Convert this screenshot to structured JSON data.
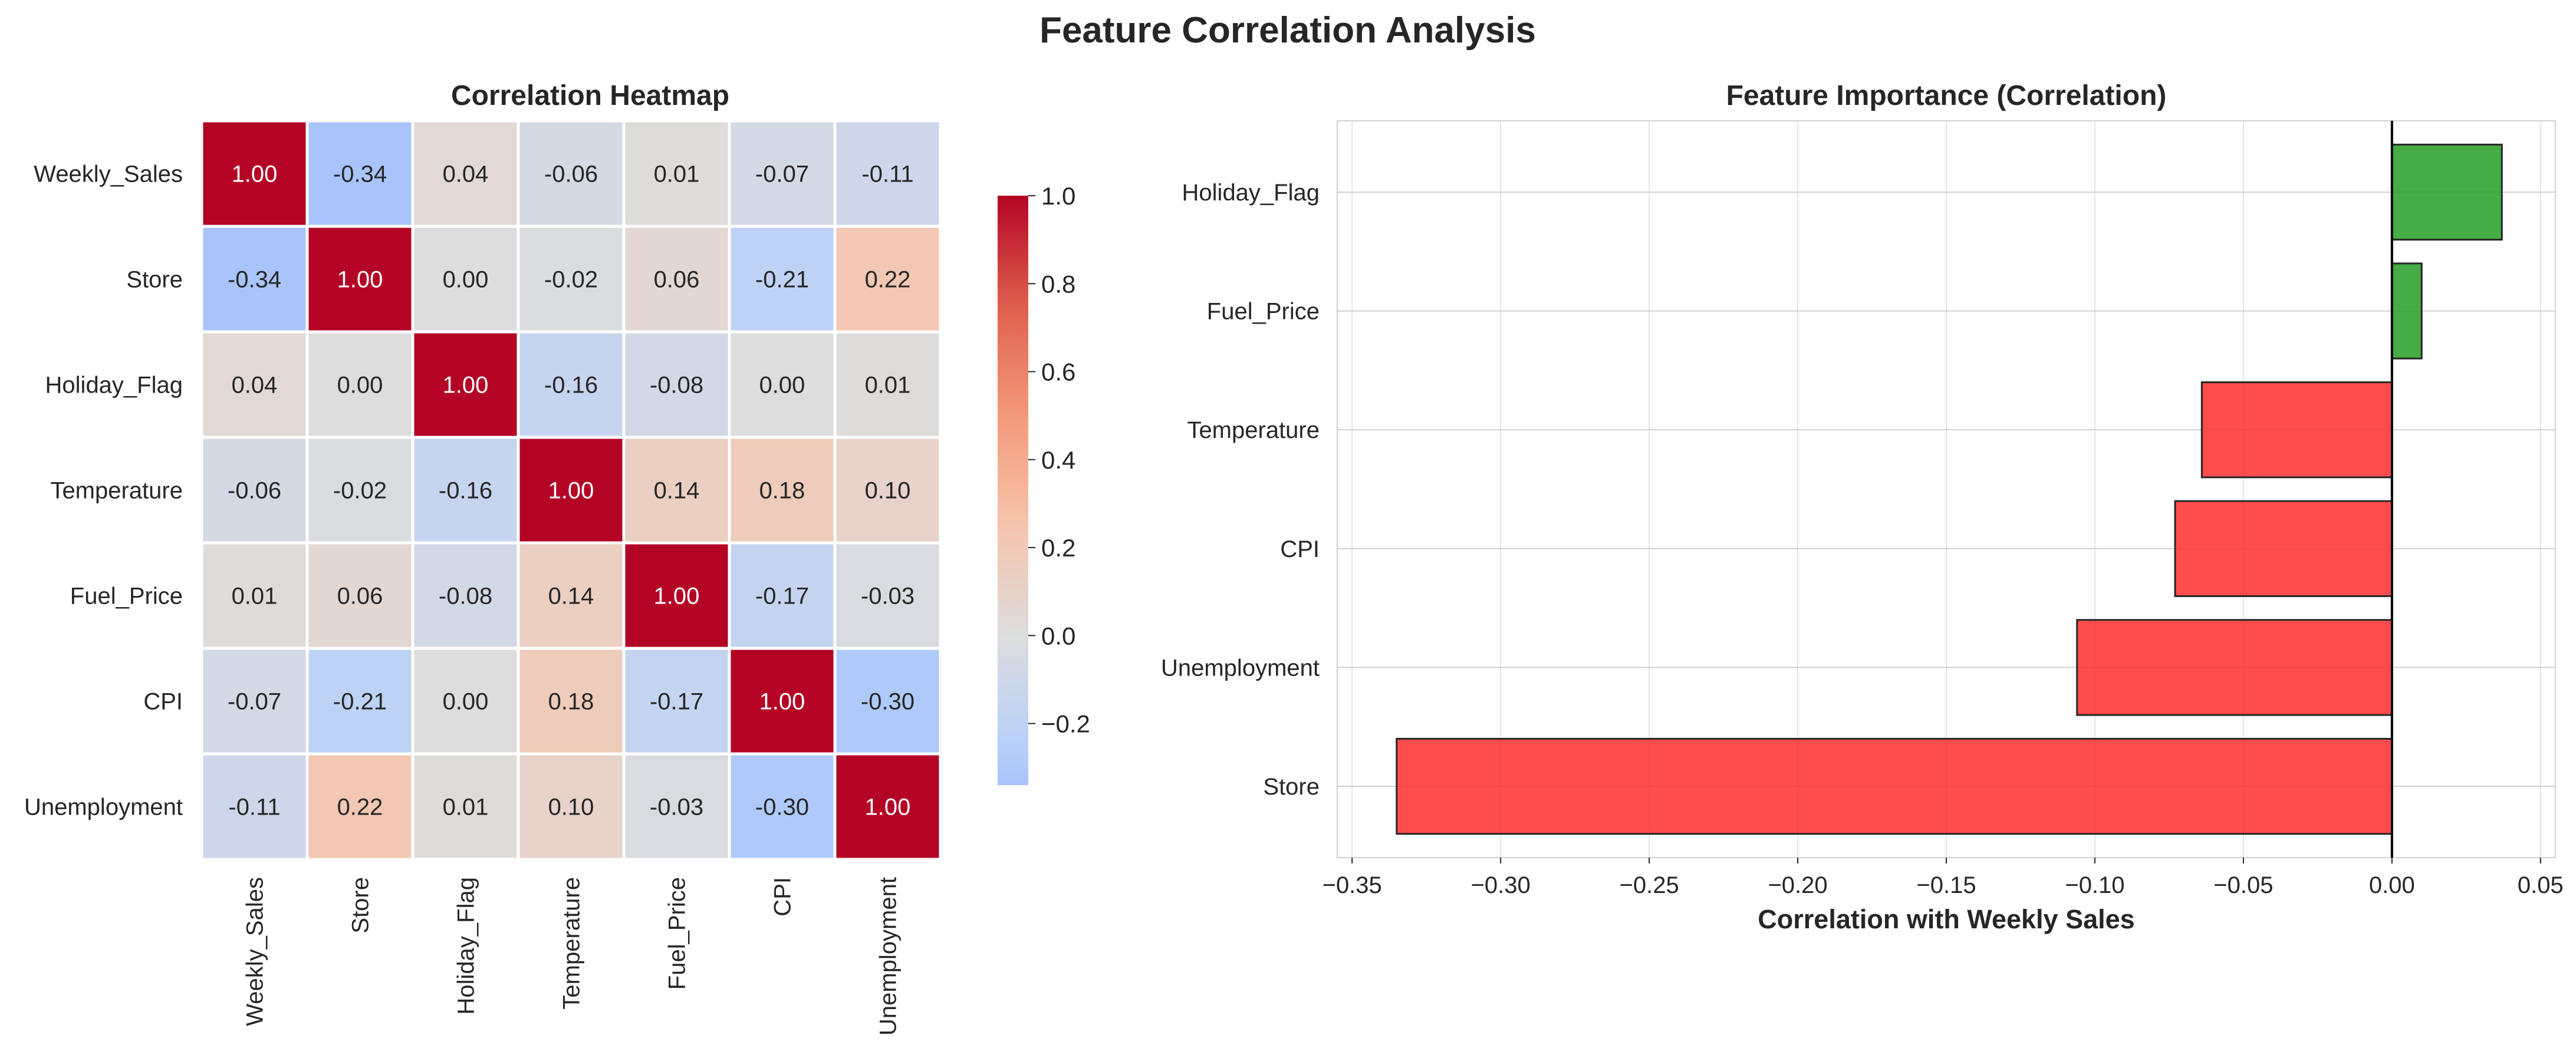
{
  "figure": {
    "title": "Feature Correlation Analysis"
  },
  "chart_data": [
    {
      "type": "heatmap",
      "title": "Correlation Heatmap",
      "xlabel": "",
      "ylabel": "",
      "rows": [
        "Weekly_Sales",
        "Store",
        "Holiday_Flag",
        "Temperature",
        "Fuel_Price",
        "CPI",
        "Unemployment"
      ],
      "columns": [
        "Weekly_Sales",
        "Store",
        "Holiday_Flag",
        "Temperature",
        "Fuel_Price",
        "CPI",
        "Unemployment"
      ],
      "values": [
        [
          1.0,
          -0.34,
          0.04,
          -0.06,
          0.01,
          -0.07,
          -0.11
        ],
        [
          -0.34,
          1.0,
          -0.0,
          -0.02,
          0.06,
          -0.21,
          0.22
        ],
        [
          0.04,
          -0.0,
          1.0,
          -0.16,
          -0.08,
          -0.0,
          0.01
        ],
        [
          -0.06,
          -0.02,
          -0.16,
          1.0,
          0.14,
          0.18,
          0.1
        ],
        [
          0.01,
          0.06,
          -0.08,
          0.14,
          1.0,
          -0.17,
          -0.03
        ],
        [
          -0.07,
          -0.21,
          -0.0,
          0.18,
          -0.17,
          1.0,
          -0.3
        ],
        [
          -0.11,
          0.22,
          0.01,
          0.1,
          -0.03,
          -0.3,
          1.0
        ]
      ],
      "colormap": "coolwarm",
      "center": 0.0,
      "colorbar": {
        "range": [
          -0.34,
          1.0
        ],
        "ticks": [
          -0.2,
          0.0,
          0.2,
          0.4,
          0.6,
          0.8,
          1.0
        ],
        "tick_labels": [
          "−0.2",
          "0.0",
          "0.2",
          "0.4",
          "0.6",
          "0.8",
          "1.0"
        ]
      },
      "annotation_format": "2 decimals",
      "colors": {
        "high": "#b40426",
        "mid": "#dddcdc",
        "low": "#3b4cc0",
        "cell_border": "#ffffff"
      }
    },
    {
      "type": "bar",
      "orientation": "horizontal",
      "title": "Feature Importance (Correlation)",
      "xlabel": "Correlation with Weekly Sales",
      "ylabel": "",
      "categories": [
        "Holiday_Flag",
        "Fuel_Price",
        "Temperature",
        "CPI",
        "Unemployment",
        "Store"
      ],
      "values": [
        0.037,
        0.01,
        -0.064,
        -0.073,
        -0.106,
        -0.335
      ],
      "xlim": [
        -0.355,
        0.055
      ],
      "xticks": [
        -0.35,
        -0.3,
        -0.25,
        -0.2,
        -0.15,
        -0.1,
        -0.05,
        0.0,
        0.05
      ],
      "xtick_labels": [
        "−0.35",
        "−0.30",
        "−0.25",
        "−0.20",
        "−0.15",
        "−0.10",
        "−0.05",
        "0.00",
        "0.05"
      ],
      "grid": true,
      "reference_line": 0.0,
      "colors": {
        "positive": "#2ca02c",
        "negative": "#ff3333",
        "edge": "#262626",
        "grid": "#e5e5e5"
      }
    }
  ]
}
